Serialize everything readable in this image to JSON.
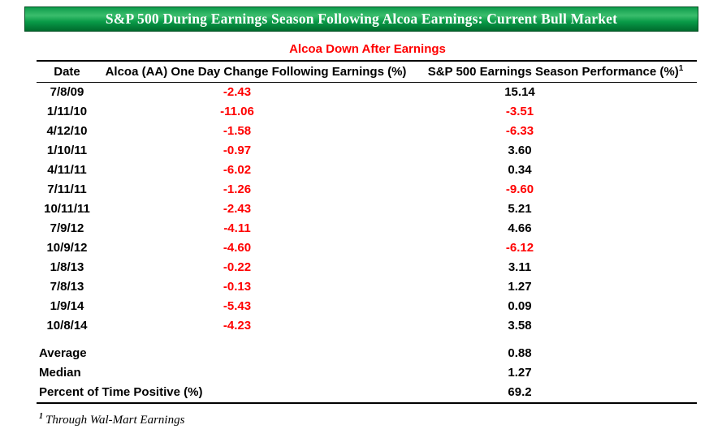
{
  "chart_data": {
    "type": "table",
    "title": "S&P 500 During Earnings Season Following Alcoa Earnings: Current Bull Market",
    "subtitle": "Alcoa Down After Earnings",
    "columns": [
      "Date",
      "Alcoa (AA) One Day Change Following Earnings (%)",
      "S&P 500 Earnings Season Performance (%)"
    ],
    "column3_footnote_marker": "1",
    "rows": [
      [
        "7/8/09",
        -2.43,
        15.14
      ],
      [
        "1/11/10",
        -11.06,
        -3.51
      ],
      [
        "4/12/10",
        -1.58,
        -6.33
      ],
      [
        "1/10/11",
        -0.97,
        3.6
      ],
      [
        "4/11/11",
        -6.02,
        0.34
      ],
      [
        "7/11/11",
        -1.26,
        -9.6
      ],
      [
        "10/11/11",
        -2.43,
        5.21
      ],
      [
        "7/9/12",
        -4.11,
        4.66
      ],
      [
        "10/9/12",
        -4.6,
        -6.12
      ],
      [
        "1/8/13",
        -0.22,
        3.11
      ],
      [
        "7/8/13",
        -0.13,
        1.27
      ],
      [
        "1/9/14",
        -5.43,
        0.09
      ],
      [
        "10/8/14",
        -4.23,
        3.58
      ]
    ],
    "summary_rows": [
      {
        "label": "Average",
        "value": "0.88"
      },
      {
        "label": "Median",
        "value": "1.27"
      },
      {
        "label": "Percent of Time Positive (%)",
        "value": "69.2"
      }
    ],
    "footnote_marker": "1",
    "footnote": "Through Wal-Mart Earnings"
  },
  "colors": {
    "banner_green": "#00A04A",
    "banner_green_dark": "#006B2D",
    "subtitle_red": "#FF0000",
    "negative_red": "#FF0000",
    "text_black": "#000000"
  }
}
